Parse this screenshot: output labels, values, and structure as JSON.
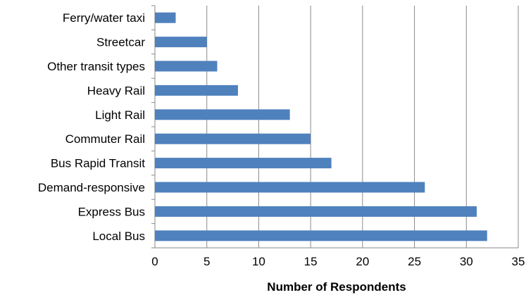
{
  "chart_data": {
    "type": "bar",
    "orientation": "horizontal",
    "categories": [
      "Ferry/water taxi",
      "Streetcar",
      "Other transit types",
      "Heavy Rail",
      "Light Rail",
      "Commuter Rail",
      "Bus Rapid Transit",
      "Demand-responsive",
      "Express Bus",
      "Local Bus"
    ],
    "values": [
      2,
      5,
      6,
      8,
      13,
      15,
      17,
      26,
      31,
      32
    ],
    "title": "",
    "xlabel": "Number of Respondents",
    "ylabel": "",
    "xlim": [
      0,
      35
    ],
    "xticks": [
      0,
      5,
      10,
      15,
      20,
      25,
      30,
      35
    ],
    "grid": true,
    "legend": "none",
    "bar_color": "#4f81bd"
  }
}
